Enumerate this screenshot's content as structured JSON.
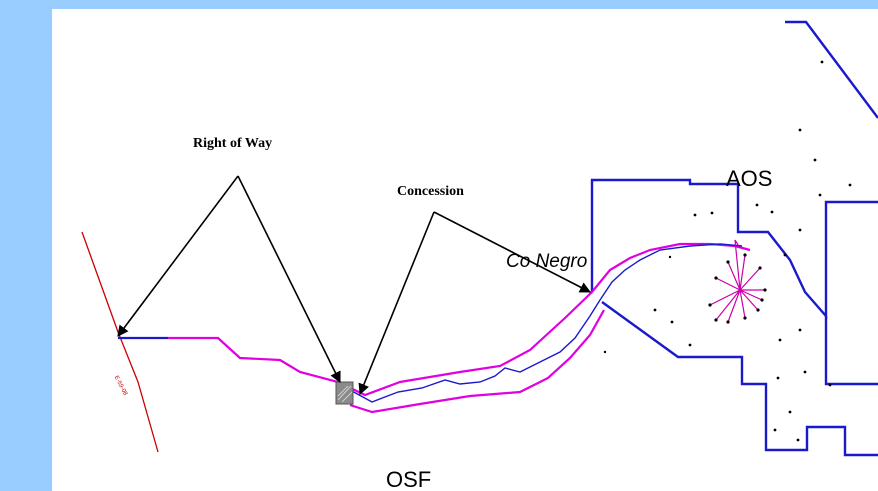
{
  "map": {
    "labels": {
      "right_of_way": "Right of Way",
      "concession": "Concession",
      "co_negro": "Co Negro",
      "aos": "AOS",
      "osf": "OSF",
      "road_tag": "E-59-08"
    },
    "colors": {
      "background": "#99ccff",
      "boundary": "#1a1acc",
      "pipeline_corridor": "#e000e0",
      "pipeline_route": "#1a1acc",
      "road": "#cc0000",
      "arrows": "#000000",
      "facility": "#8a8a8a"
    }
  }
}
